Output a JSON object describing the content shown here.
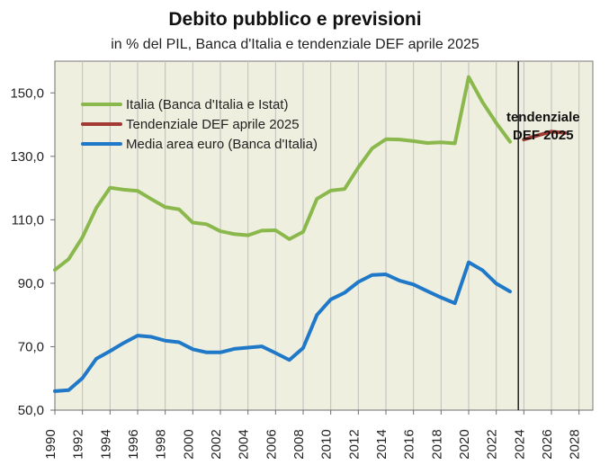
{
  "chart_data": {
    "type": "line",
    "title": "Debito pubblico e previsioni",
    "subtitle": "in % del PIL, Banca d'Italia e tendenziale DEF aprile 2025",
    "xlabel": "",
    "ylabel": "",
    "xlim": [
      1990,
      2029
    ],
    "ylim": [
      50,
      160
    ],
    "y_ticks": [
      "50,0",
      "70,0",
      "90,0",
      "110,0",
      "130,0",
      "150,0"
    ],
    "y_tick_values": [
      50,
      70,
      90,
      110,
      130,
      150
    ],
    "x_ticks": [
      "1990",
      "1992",
      "1994",
      "1996",
      "1998",
      "2000",
      "2002",
      "2004",
      "2006",
      "2008",
      "2010",
      "2012",
      "2014",
      "2016",
      "2018",
      "2020",
      "2022",
      "2024",
      "2026",
      "2028"
    ],
    "x_tick_values": [
      1990,
      1992,
      1994,
      1996,
      1998,
      2000,
      2002,
      2004,
      2006,
      2008,
      2010,
      2012,
      2014,
      2016,
      2018,
      2020,
      2022,
      2024,
      2026,
      2028
    ],
    "grid": "vertical",
    "legend_position": "top-left",
    "series": [
      {
        "name": "Italia (Banca d'Italia e Istat)",
        "color": "#8ab84c",
        "x": [
          1990,
          1991,
          1992,
          1993,
          1994,
          1995,
          1996,
          1997,
          1998,
          1999,
          2000,
          2001,
          2002,
          2003,
          2004,
          2005,
          2006,
          2007,
          2008,
          2009,
          2010,
          2011,
          2012,
          2013,
          2014,
          2015,
          2016,
          2017,
          2018,
          2019,
          2020,
          2021,
          2022,
          2023
        ],
        "values": [
          94.2,
          97.6,
          104.5,
          113.7,
          120.1,
          119.5,
          119.1,
          116.5,
          114.0,
          113.3,
          109.1,
          108.6,
          106.4,
          105.5,
          105.1,
          106.6,
          106.7,
          103.9,
          106.2,
          116.6,
          119.2,
          119.7,
          126.5,
          132.5,
          135.4,
          135.3,
          134.8,
          134.2,
          134.4,
          134.1,
          155.0,
          147.1,
          140.5,
          134.6
        ]
      },
      {
        "name": "Tendenziale DEF aprile 2025",
        "color": "#a33a34",
        "x": [
          2024,
          2025,
          2026,
          2027
        ],
        "values": [
          135.3,
          136.6,
          137.8,
          137.4
        ]
      },
      {
        "name": "Media area euro (Banca d'Italia)",
        "color": "#1f78c8",
        "x": [
          1990,
          1991,
          1992,
          1993,
          1994,
          1995,
          1996,
          1997,
          1998,
          1999,
          2000,
          2001,
          2002,
          2003,
          2004,
          2005,
          2006,
          2007,
          2008,
          2009,
          2010,
          2011,
          2012,
          2013,
          2014,
          2015,
          2016,
          2017,
          2018,
          2019,
          2020,
          2021,
          2022,
          2023
        ],
        "values": [
          56.0,
          56.3,
          60.1,
          66.2,
          68.6,
          71.2,
          73.5,
          73.1,
          71.9,
          71.4,
          69.2,
          68.2,
          68.2,
          69.3,
          69.7,
          70.1,
          68.0,
          65.8,
          69.6,
          80.0,
          84.9,
          87.0,
          90.4,
          92.6,
          92.8,
          90.8,
          89.6,
          87.5,
          85.5,
          83.7,
          96.6,
          94.1,
          89.9,
          87.4
        ]
      }
    ],
    "annotations": [
      {
        "text_lines": [
          "tendenziale",
          "DEF 2025"
        ],
        "x": 2025.4,
        "y": 141.0
      }
    ],
    "reference_lines": [
      {
        "x": 2023.6,
        "color": "#222222"
      }
    ],
    "plot_background": "#efefdf"
  }
}
